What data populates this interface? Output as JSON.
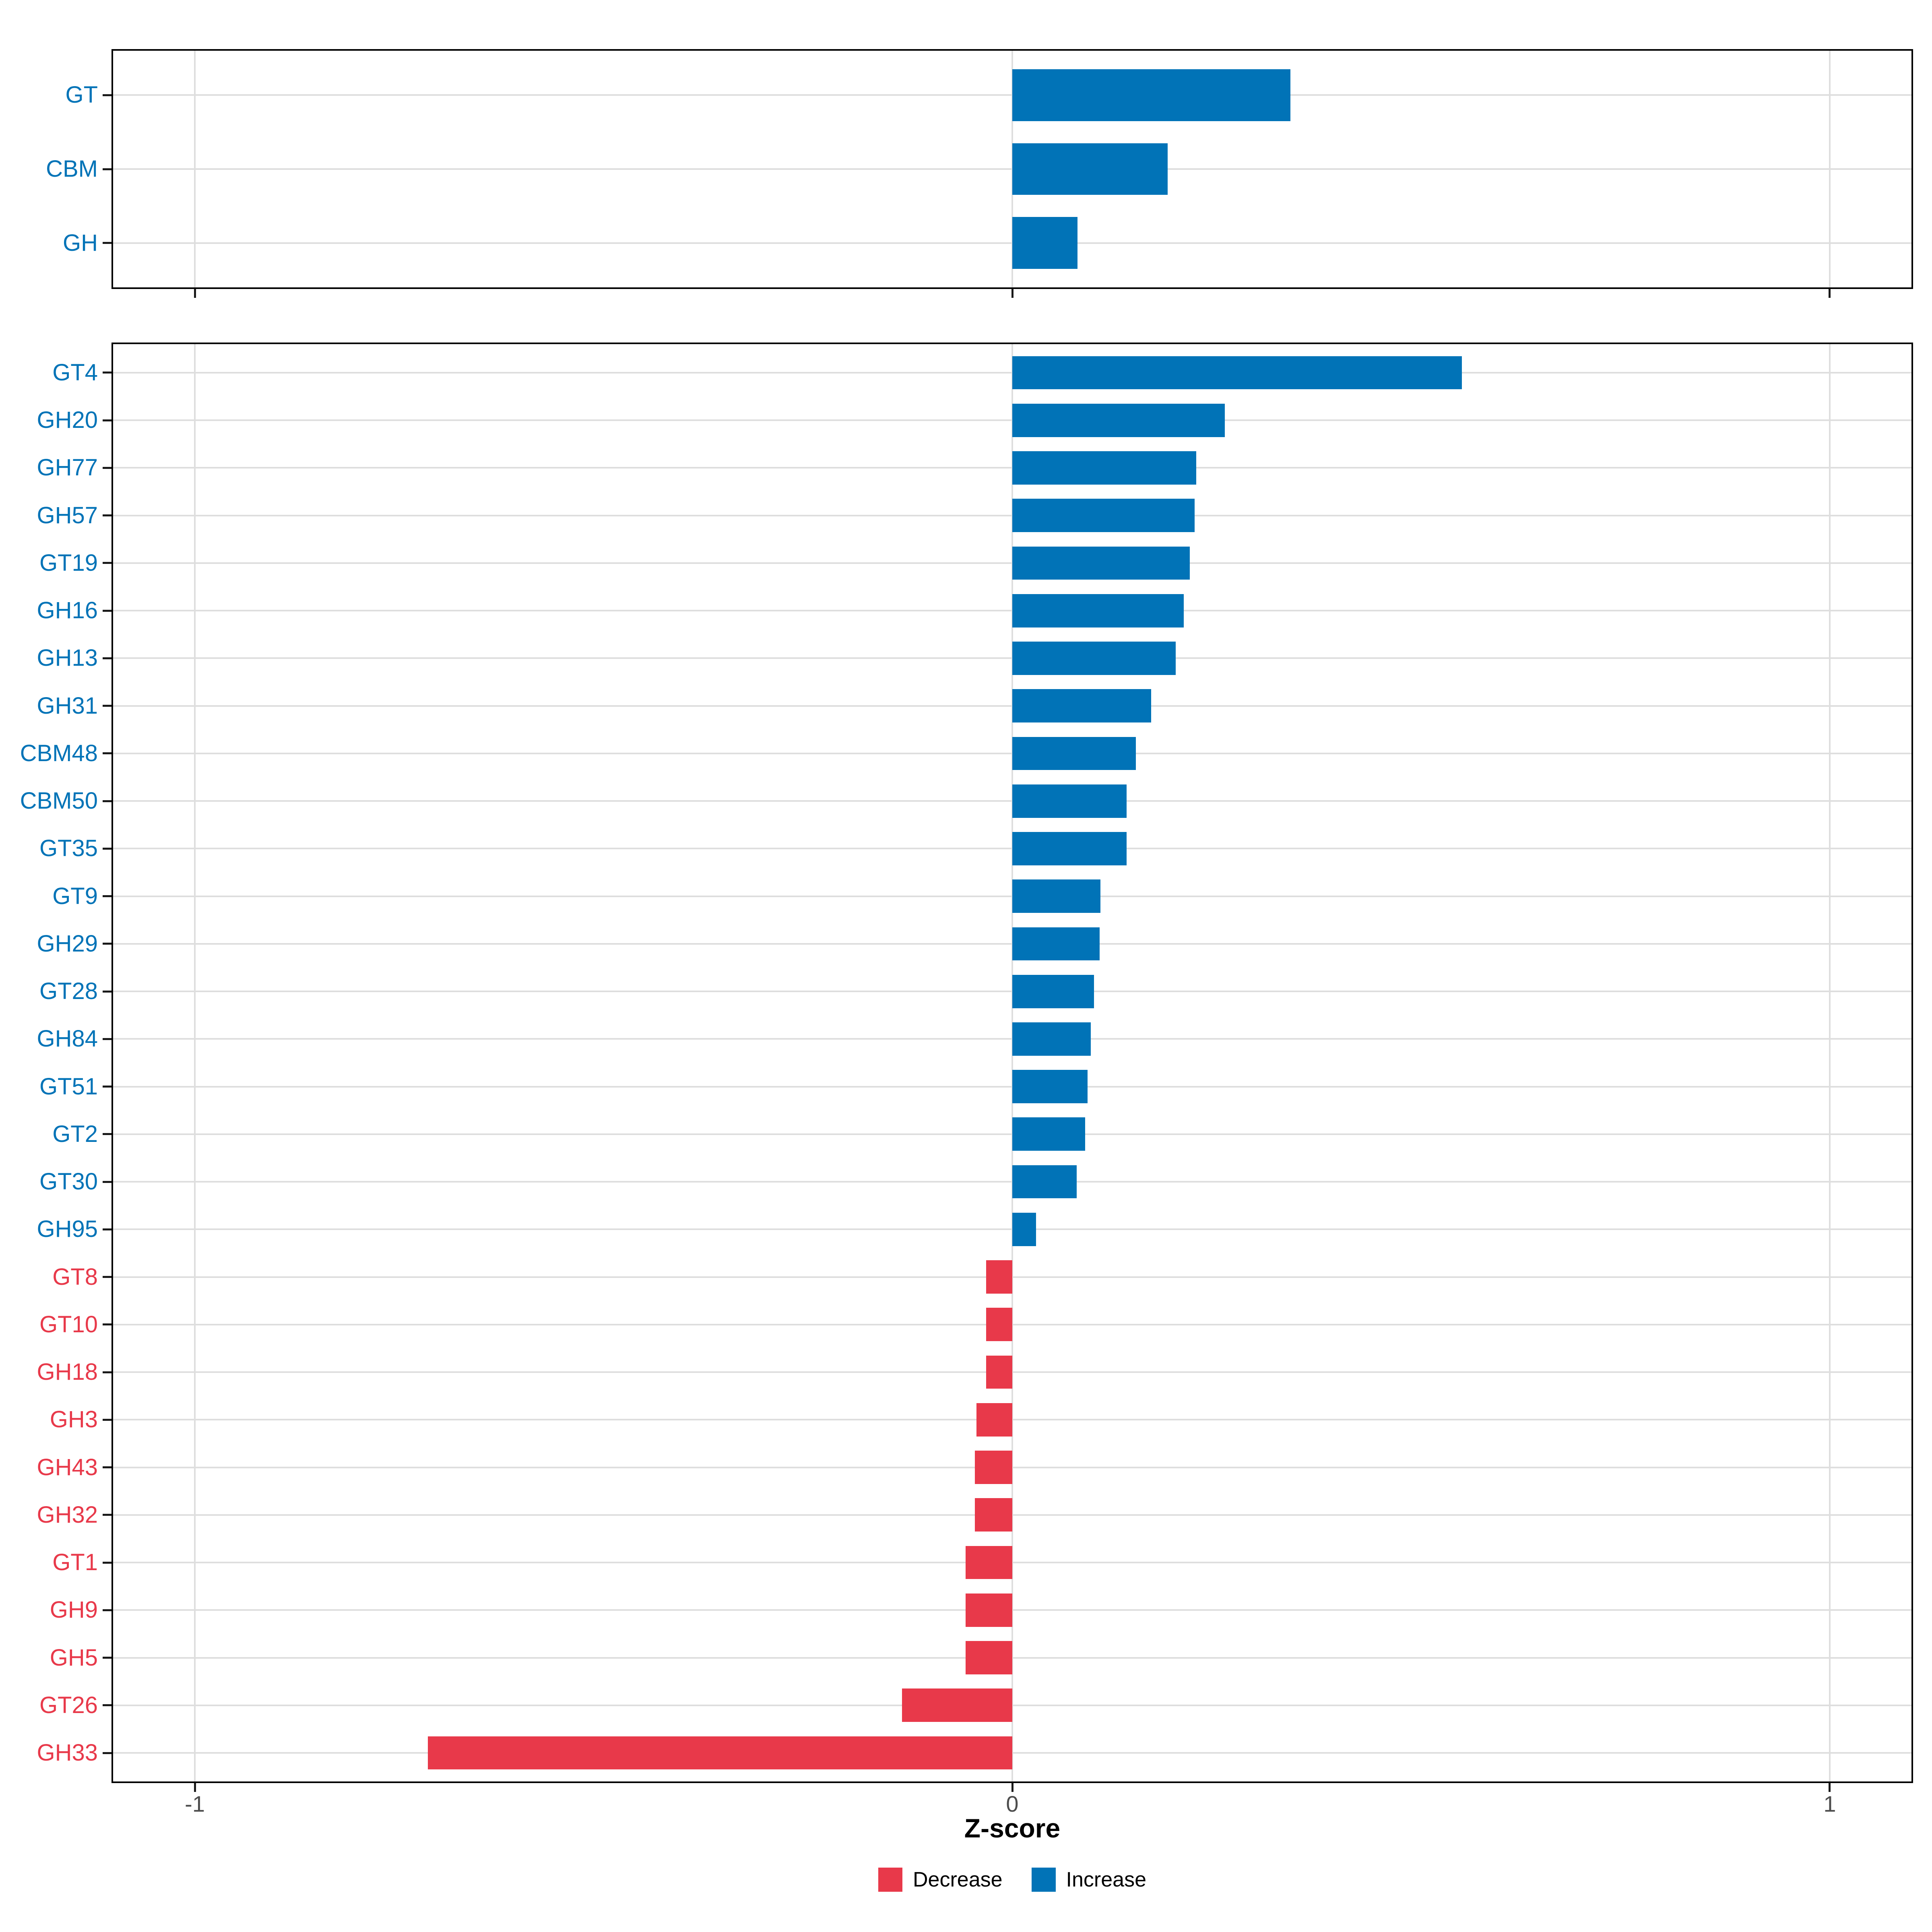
{
  "figure": {
    "background": "#FFFFFF"
  },
  "colors": {
    "increase": "#0173B7",
    "decrease": "#E8394A",
    "grid": "#DEDEDE",
    "panel_border": "#000000",
    "tick": "#1A1A1A",
    "tick_label": "#4D4D4D",
    "axis_title": "#000000",
    "legend_text": "#000000"
  },
  "x_axis": {
    "title": "Z-score",
    "tick_labels": [
      "-1",
      "0",
      "1"
    ],
    "tick_values": [
      -1,
      0,
      1
    ],
    "limits": [
      -1.1,
      1.1
    ]
  },
  "legend": {
    "position": "bottom",
    "items": [
      {
        "label": "Decrease",
        "key": "decrease"
      },
      {
        "label": "Increase",
        "key": "increase"
      }
    ]
  },
  "chart_data": [
    {
      "type": "bar",
      "orientation": "horizontal",
      "panel": "cazyme-class-summary",
      "title": "",
      "xlabel": "Z-score",
      "xlim": [
        -1.1,
        1.1
      ],
      "grid": true,
      "categories": [
        "GT",
        "CBM",
        "GH"
      ],
      "values": [
        0.34,
        0.19,
        0.08
      ],
      "directions": [
        "increase",
        "increase",
        "increase"
      ]
    },
    {
      "type": "bar",
      "orientation": "horizontal",
      "panel": "cazyme-families",
      "title": "",
      "xlabel": "Z-score",
      "xlim": [
        -1.1,
        1.1
      ],
      "grid": true,
      "categories": [
        "GT4",
        "GH20",
        "GH77",
        "GH57",
        "GT19",
        "GH16",
        "GH13",
        "GH31",
        "CBM48",
        "CBM50",
        "GT35",
        "GT9",
        "GH29",
        "GT28",
        "GH84",
        "GT51",
        "GT2",
        "GT30",
        "GH95",
        "GT8",
        "GT10",
        "GH18",
        "GH3",
        "GH43",
        "GH32",
        "GT1",
        "GH9",
        "GH5",
        "GT26",
        "GH33"
      ],
      "values": [
        0.55,
        0.26,
        0.225,
        0.223,
        0.217,
        0.21,
        0.2,
        0.17,
        0.151,
        0.14,
        0.14,
        0.108,
        0.107,
        0.1,
        0.096,
        0.092,
        0.089,
        0.079,
        0.029,
        -0.032,
        -0.032,
        -0.032,
        -0.044,
        -0.046,
        -0.046,
        -0.057,
        -0.057,
        -0.057,
        -0.135,
        -0.715
      ],
      "directions": [
        "increase",
        "increase",
        "increase",
        "increase",
        "increase",
        "increase",
        "increase",
        "increase",
        "increase",
        "increase",
        "increase",
        "increase",
        "increase",
        "increase",
        "increase",
        "increase",
        "increase",
        "increase",
        "increase",
        "decrease",
        "decrease",
        "decrease",
        "decrease",
        "decrease",
        "decrease",
        "decrease",
        "decrease",
        "decrease",
        "decrease",
        "decrease"
      ]
    }
  ]
}
